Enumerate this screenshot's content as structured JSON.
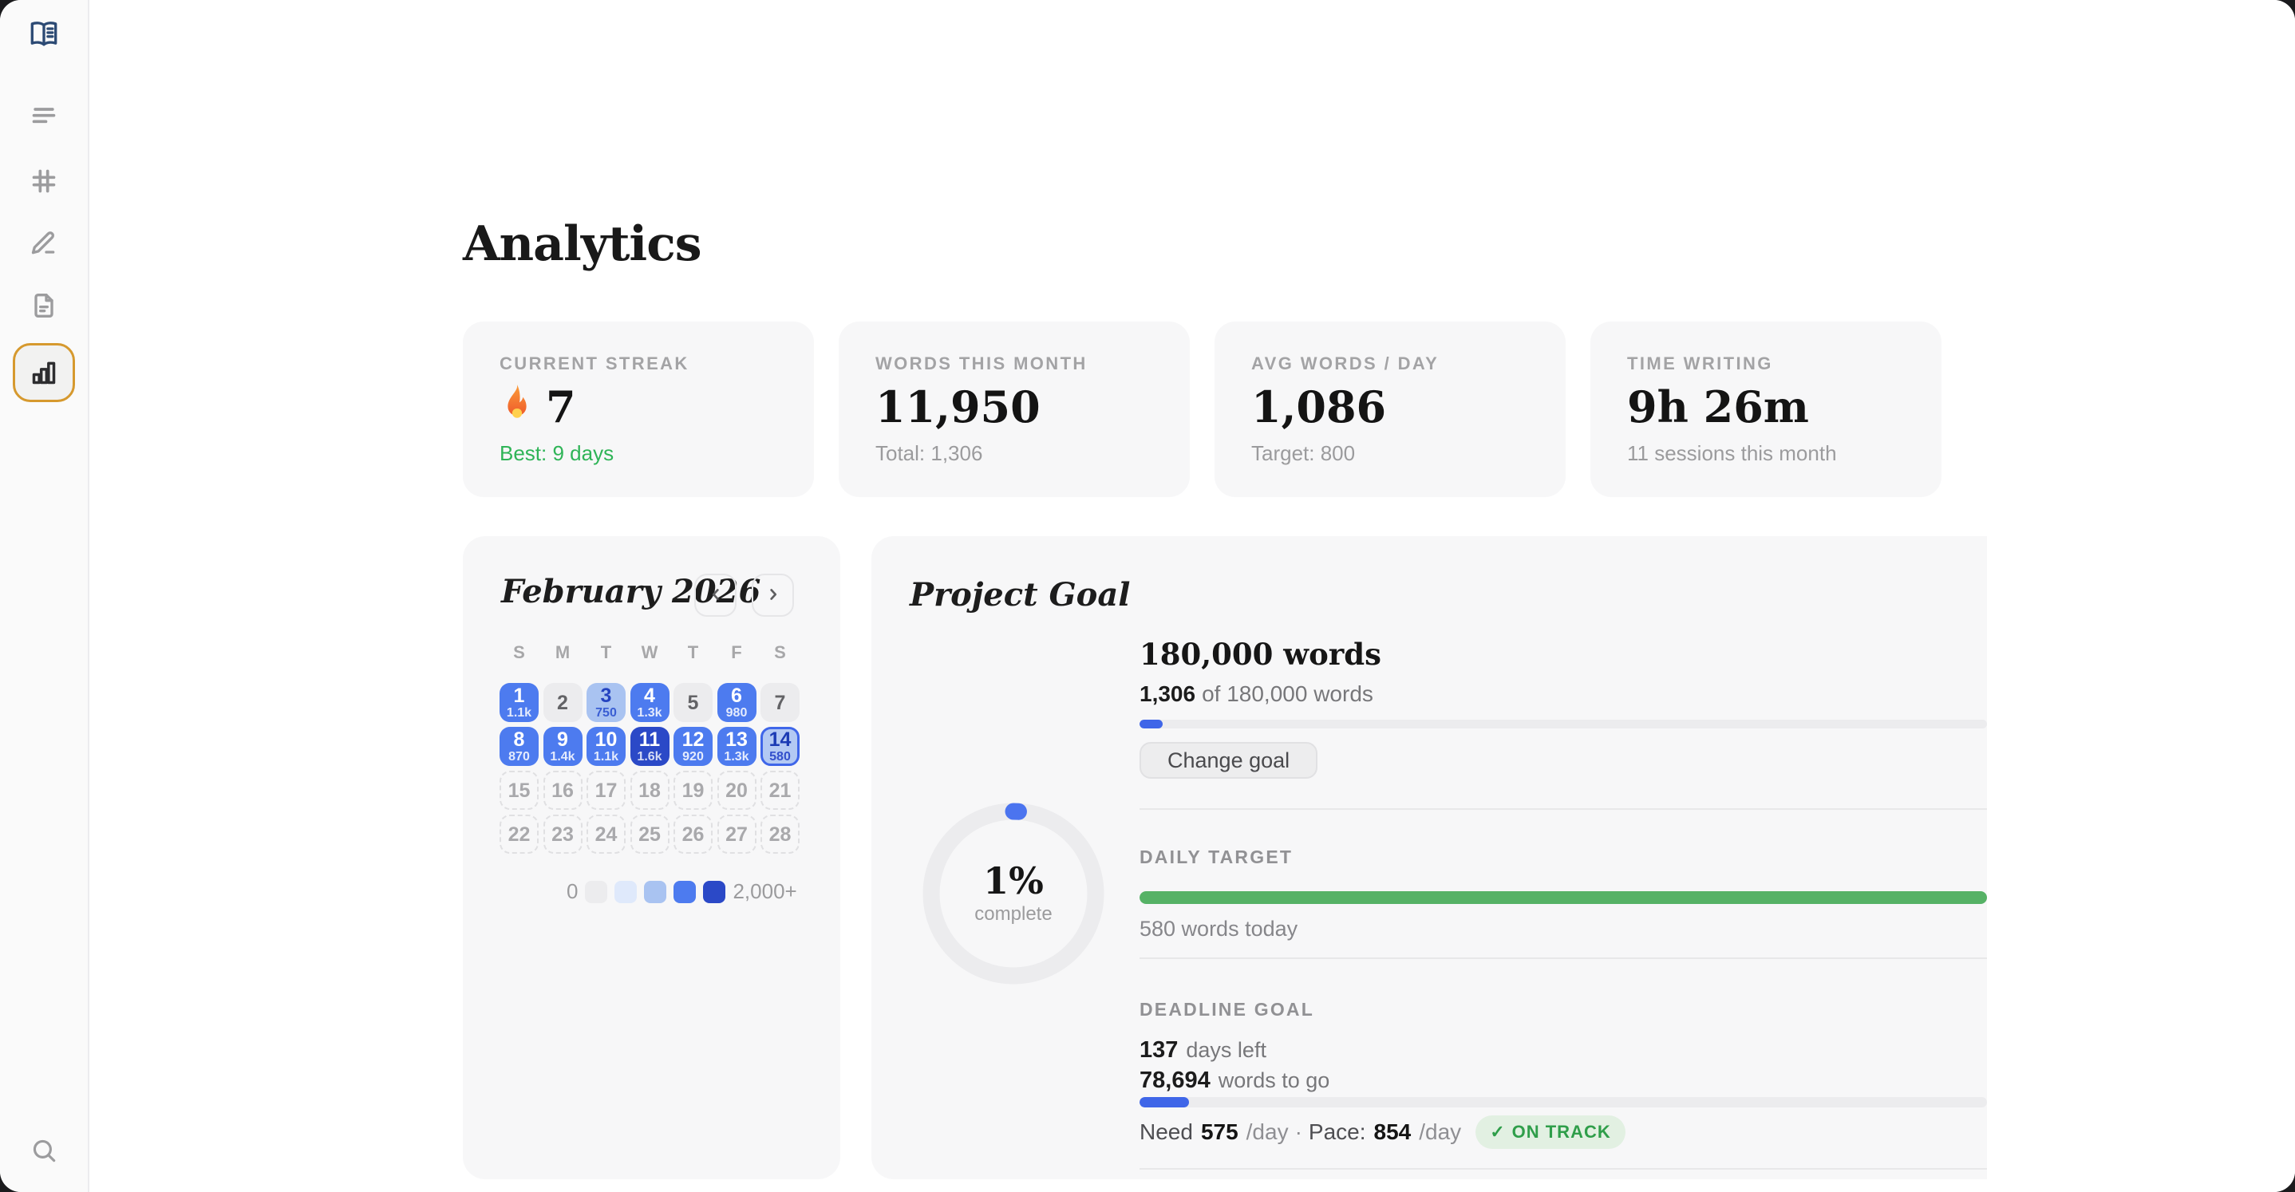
{
  "page": {
    "title": "Analytics"
  },
  "theme": {
    "accent_blue": "#3f66e8",
    "green_bar": "#56b266",
    "green_text": "#2fb457",
    "amber_active": "#d6992e",
    "card_bg": "#f7f7f8",
    "badge_bg": "#e2f0e2",
    "badge_text": "#2f9e4a"
  },
  "sidebar": {
    "items": [
      {
        "name": "library",
        "icon": "book",
        "active": false
      },
      {
        "name": "outline",
        "icon": "lines",
        "active": false
      },
      {
        "name": "boards",
        "icon": "grid",
        "active": false
      },
      {
        "name": "editor",
        "icon": "pen",
        "active": false
      },
      {
        "name": "documents",
        "icon": "doc",
        "active": false
      },
      {
        "name": "analytics",
        "icon": "chart",
        "active": true
      }
    ],
    "bottom_item": {
      "name": "search",
      "icon": "search"
    }
  },
  "stats": [
    {
      "label": "CURRENT STREAK",
      "value": "7",
      "icon": "flame",
      "sub": "Best: 9 days"
    },
    {
      "label": "WORDS THIS MONTH",
      "value": "11,950",
      "sub": "Total: 1,306"
    },
    {
      "label": "AVG WORDS / DAY",
      "value": "1,086",
      "sub": "Target: 800"
    },
    {
      "label": "TIME WRITING",
      "value": "9h 26m",
      "sub": "11 sessions this month"
    }
  ],
  "calendar": {
    "title": "February 2026",
    "nav": {
      "prev_icon": "chevron-left",
      "next_icon": "chevron-right"
    },
    "weekdays": [
      "S",
      "M",
      "T",
      "W",
      "T",
      "F",
      "S"
    ],
    "days": [
      {
        "day": "1",
        "words": "1.1k",
        "level": 3
      },
      {
        "day": "2",
        "level": 0
      },
      {
        "day": "3",
        "words": "750",
        "level": 2
      },
      {
        "day": "4",
        "words": "1.3k",
        "level": 3
      },
      {
        "day": "5",
        "level": 0
      },
      {
        "day": "6",
        "words": "980",
        "level": 3
      },
      {
        "day": "7",
        "level": 0
      },
      {
        "day": "8",
        "words": "870",
        "level": 3
      },
      {
        "day": "9",
        "words": "1.4k",
        "level": 3
      },
      {
        "day": "10",
        "words": "1.1k",
        "level": 3
      },
      {
        "day": "11",
        "words": "1.6k",
        "level": 4
      },
      {
        "day": "12",
        "words": "920",
        "level": 3
      },
      {
        "day": "13",
        "words": "1.3k",
        "level": 3
      },
      {
        "day": "14",
        "words": "580",
        "level": 2,
        "today": true
      },
      {
        "day": "15",
        "future": true
      },
      {
        "day": "16",
        "future": true
      },
      {
        "day": "17",
        "future": true
      },
      {
        "day": "18",
        "future": true
      },
      {
        "day": "19",
        "future": true
      },
      {
        "day": "20",
        "future": true
      },
      {
        "day": "21",
        "future": true
      },
      {
        "day": "22",
        "future": true
      },
      {
        "day": "23",
        "future": true
      },
      {
        "day": "24",
        "future": true
      },
      {
        "day": "25",
        "future": true
      },
      {
        "day": "26",
        "future": true
      },
      {
        "day": "27",
        "future": true
      },
      {
        "day": "28",
        "future": true
      }
    ],
    "legend": {
      "min_label": "0",
      "max_label": "2,000+",
      "colors": [
        "#ececee",
        "#dfe9fb",
        "#a9c3f1",
        "#4d7bef",
        "#2b49c7"
      ]
    }
  },
  "goal": {
    "title": "Project Goal",
    "ring": {
      "percent": "1%",
      "label": "complete",
      "value": 1
    },
    "target": {
      "heading": "180,000 words",
      "progress_current": "1,306",
      "progress_rest": "of 180,000 words",
      "fill_pct": 2.7,
      "button": "Change goal"
    },
    "daily": {
      "heading": "DAILY TARGET",
      "sub": "580 words today",
      "fill_pct": 100
    },
    "deadline": {
      "heading": "DEADLINE GOAL",
      "days_value": "137",
      "days_label": "days left",
      "togo_value": "78,694",
      "togo_label": "words to go",
      "fill_pct": 5.8,
      "need_label": "Need",
      "need_value": "575",
      "need_unit": "/day",
      "dot": "·",
      "pace_label": "Pace:",
      "pace_value": "854",
      "pace_unit": "/day",
      "badge_check": "✓",
      "badge_label": "ON TRACK"
    }
  }
}
